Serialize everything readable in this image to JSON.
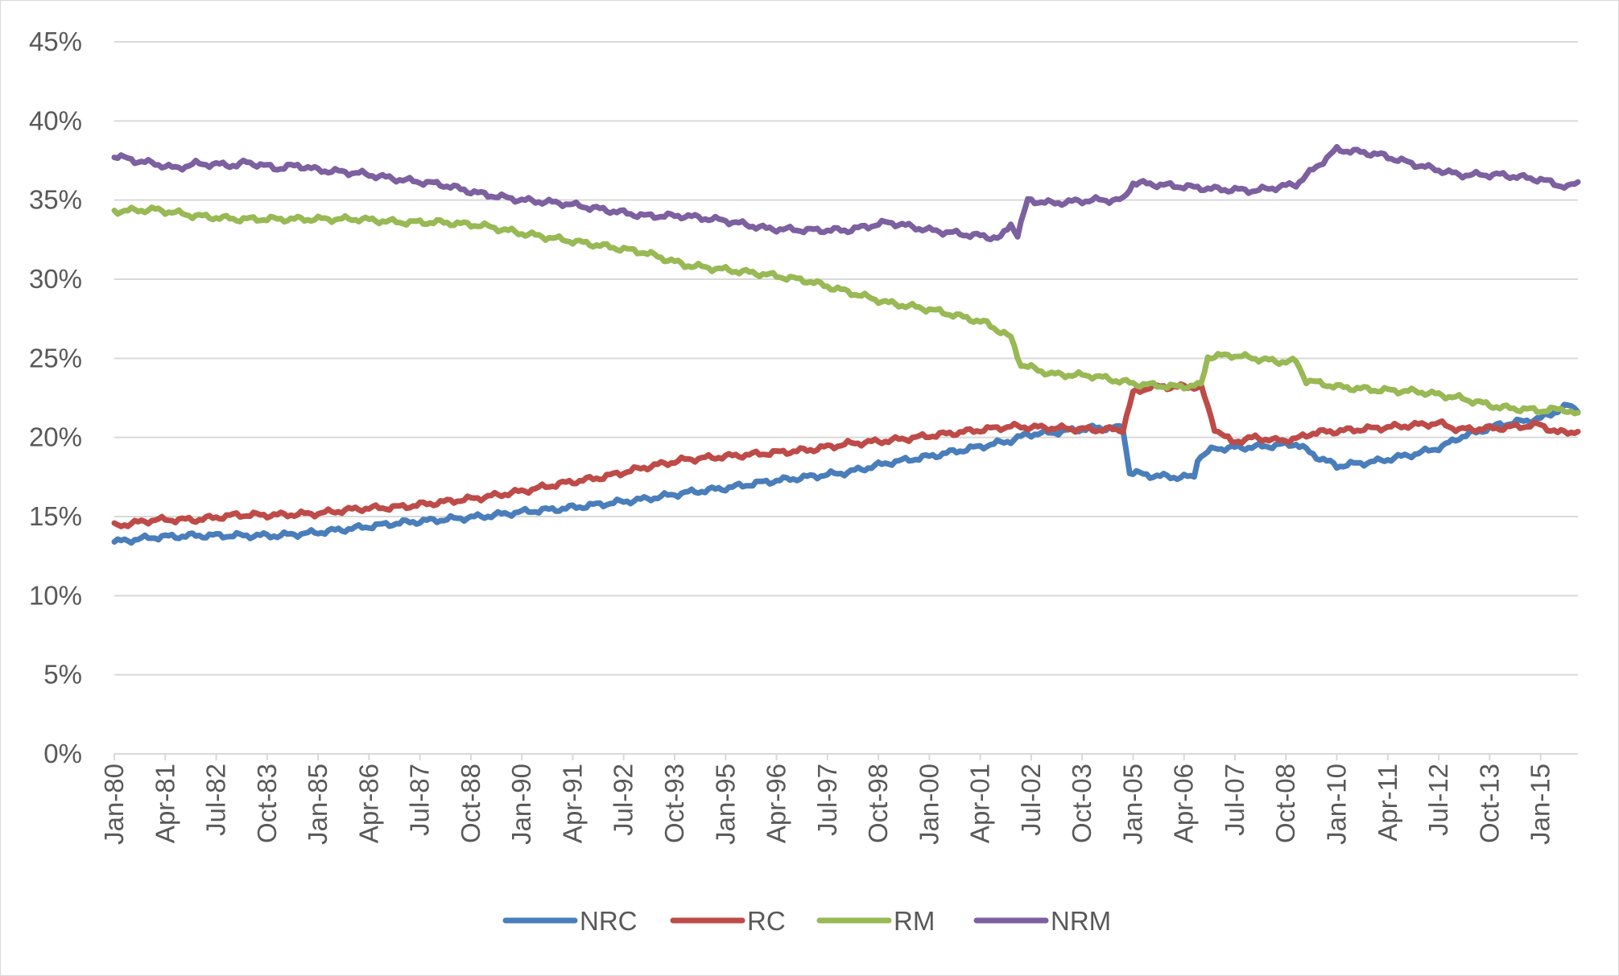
{
  "chart_data": {
    "type": "line",
    "title": "",
    "xlabel": "",
    "ylabel": "",
    "ylim": [
      0,
      45
    ],
    "y_ticks": [
      0,
      5,
      10,
      15,
      20,
      25,
      30,
      35,
      40,
      45
    ],
    "y_tick_labels": [
      "0%",
      "5%",
      "10%",
      "15%",
      "20%",
      "25%",
      "30%",
      "35%",
      "40%",
      "45%"
    ],
    "grid": "horizontal",
    "legend_position": "bottom",
    "x_range": [
      "1980-01",
      "2015-12"
    ],
    "x_tick_labels": [
      "Jan-80",
      "Apr-81",
      "Jul-82",
      "Oct-83",
      "Jan-85",
      "Apr-86",
      "Jul-87",
      "Oct-88",
      "Jan-90",
      "Apr-91",
      "Jul-92",
      "Oct-93",
      "Jan-95",
      "Apr-96",
      "Jul-97",
      "Oct-98",
      "Jan-00",
      "Apr-01",
      "Jul-02",
      "Oct-03",
      "Jan-05",
      "Apr-06",
      "Jul-07",
      "Oct-08",
      "Jan-10",
      "Apr-11",
      "Jul-12",
      "Oct-13",
      "Jan-15"
    ],
    "series": [
      {
        "name": "NRC",
        "color": "#4a7ebb",
        "points": [
          [
            "1980-01",
            13.4
          ],
          [
            "1981-01",
            13.7
          ],
          [
            "1982-01",
            13.8
          ],
          [
            "1983-01",
            13.8
          ],
          [
            "1984-01",
            13.8
          ],
          [
            "1985-01",
            14.0
          ],
          [
            "1986-01",
            14.3
          ],
          [
            "1987-01",
            14.6
          ],
          [
            "1988-01",
            14.8
          ],
          [
            "1989-01",
            15.0
          ],
          [
            "1990-01",
            15.3
          ],
          [
            "1991-01",
            15.5
          ],
          [
            "1992-01",
            15.8
          ],
          [
            "1993-01",
            16.1
          ],
          [
            "1994-01",
            16.5
          ],
          [
            "1995-01",
            16.8
          ],
          [
            "1996-01",
            17.2
          ],
          [
            "1997-01",
            17.5
          ],
          [
            "1998-01",
            17.8
          ],
          [
            "1999-01",
            18.4
          ],
          [
            "2000-01",
            18.8
          ],
          [
            "2001-01",
            19.3
          ],
          [
            "2002-01",
            19.8
          ],
          [
            "2002-06",
            20.2
          ],
          [
            "2003-01",
            20.3
          ],
          [
            "2004-01",
            20.6
          ],
          [
            "2004-10",
            20.6
          ],
          [
            "2004-12",
            17.8
          ],
          [
            "2005-06",
            17.6
          ],
          [
            "2006-01",
            17.5
          ],
          [
            "2006-07",
            17.5
          ],
          [
            "2006-08",
            18.7
          ],
          [
            "2007-01",
            19.3
          ],
          [
            "2008-01",
            19.4
          ],
          [
            "2009-01",
            19.6
          ],
          [
            "2009-07",
            18.8
          ],
          [
            "2010-01",
            18.2
          ],
          [
            "2011-01",
            18.5
          ],
          [
            "2012-01",
            19.0
          ],
          [
            "2012-06",
            19.3
          ],
          [
            "2012-08",
            19.4
          ],
          [
            "2013-01",
            20.0
          ],
          [
            "2014-01",
            20.8
          ],
          [
            "2015-01",
            21.2
          ],
          [
            "2015-09",
            22.0
          ],
          [
            "2015-12",
            21.8
          ]
        ]
      },
      {
        "name": "RC",
        "color": "#be4b48",
        "points": [
          [
            "1980-01",
            14.4
          ],
          [
            "1981-01",
            14.8
          ],
          [
            "1982-01",
            14.8
          ],
          [
            "1983-01",
            15.1
          ],
          [
            "1984-01",
            15.1
          ],
          [
            "1985-01",
            15.2
          ],
          [
            "1986-01",
            15.5
          ],
          [
            "1987-01",
            15.6
          ],
          [
            "1988-01",
            15.9
          ],
          [
            "1989-01",
            16.2
          ],
          [
            "1990-01",
            16.6
          ],
          [
            "1991-01",
            17.1
          ],
          [
            "1992-01",
            17.5
          ],
          [
            "1993-01",
            18.1
          ],
          [
            "1994-01",
            18.6
          ],
          [
            "1995-01",
            18.8
          ],
          [
            "1996-01",
            19.0
          ],
          [
            "1997-01",
            19.2
          ],
          [
            "1998-01",
            19.6
          ],
          [
            "1999-01",
            19.8
          ],
          [
            "2000-01",
            20.1
          ],
          [
            "2001-01",
            20.4
          ],
          [
            "2002-01",
            20.7
          ],
          [
            "2003-01",
            20.6
          ],
          [
            "2004-01",
            20.5
          ],
          [
            "2004-10",
            20.5
          ],
          [
            "2005-01",
            22.8
          ],
          [
            "2005-06",
            23.2
          ],
          [
            "2006-01",
            23.2
          ],
          [
            "2006-09",
            23.2
          ],
          [
            "2007-01",
            20.6
          ],
          [
            "2007-06",
            19.7
          ],
          [
            "2008-01",
            20.0
          ],
          [
            "2008-07",
            19.8
          ],
          [
            "2009-01",
            19.9
          ],
          [
            "2009-06",
            20.3
          ],
          [
            "2010-01",
            20.4
          ],
          [
            "2011-01",
            20.6
          ],
          [
            "2012-01",
            20.8
          ],
          [
            "2012-07",
            20.9
          ],
          [
            "2013-01",
            20.5
          ],
          [
            "2014-01",
            20.6
          ],
          [
            "2015-01",
            20.8
          ],
          [
            "2015-06",
            20.3
          ],
          [
            "2015-12",
            20.4
          ]
        ]
      },
      {
        "name": "RM",
        "color": "#98b954",
        "points": [
          [
            "1980-01",
            34.3
          ],
          [
            "1981-01",
            34.4
          ],
          [
            "1982-01",
            34.0
          ],
          [
            "1983-01",
            33.8
          ],
          [
            "1984-01",
            33.8
          ],
          [
            "1985-01",
            33.8
          ],
          [
            "1986-01",
            33.8
          ],
          [
            "1987-01",
            33.6
          ],
          [
            "1988-01",
            33.6
          ],
          [
            "1989-01",
            33.4
          ],
          [
            "1989-06",
            33.2
          ],
          [
            "1990-01",
            32.9
          ],
          [
            "1991-01",
            32.5
          ],
          [
            "1992-01",
            32.1
          ],
          [
            "1993-01",
            31.7
          ],
          [
            "1994-01",
            30.9
          ],
          [
            "1995-01",
            30.6
          ],
          [
            "1996-01",
            30.3
          ],
          [
            "1997-01",
            29.9
          ],
          [
            "1998-01",
            29.2
          ],
          [
            "1999-01",
            28.5
          ],
          [
            "2000-01",
            28.1
          ],
          [
            "2001-01",
            27.5
          ],
          [
            "2001-06",
            27.2
          ],
          [
            "2002-01",
            26.3
          ],
          [
            "2002-04",
            24.6
          ],
          [
            "2003-01",
            24.0
          ],
          [
            "2004-01",
            23.9
          ],
          [
            "2005-01",
            23.4
          ],
          [
            "2006-01",
            23.2
          ],
          [
            "2006-09",
            23.3
          ],
          [
            "2006-11",
            25.1
          ],
          [
            "2007-06",
            25.2
          ],
          [
            "2008-01",
            25.0
          ],
          [
            "2008-07",
            24.8
          ],
          [
            "2009-01",
            24.8
          ],
          [
            "2009-04",
            23.6
          ],
          [
            "2010-01",
            23.2
          ],
          [
            "2011-01",
            23.0
          ],
          [
            "2012-01",
            22.9
          ],
          [
            "2013-01",
            22.5
          ],
          [
            "2014-01",
            21.9
          ],
          [
            "2015-01",
            21.7
          ],
          [
            "2015-08",
            21.8
          ],
          [
            "2015-12",
            21.4
          ]
        ]
      },
      {
        "name": "NRM",
        "color": "#7d60a0",
        "points": [
          [
            "1980-01",
            37.8
          ],
          [
            "1980-07",
            37.5
          ],
          [
            "1981-01",
            37.3
          ],
          [
            "1981-07",
            37.0
          ],
          [
            "1982-01",
            37.3
          ],
          [
            "1983-01",
            37.2
          ],
          [
            "1983-04",
            37.4
          ],
          [
            "1984-01",
            37.0
          ],
          [
            "1984-07",
            37.2
          ],
          [
            "1985-01",
            36.9
          ],
          [
            "1986-01",
            36.7
          ],
          [
            "1987-01",
            36.3
          ],
          [
            "1988-01",
            36.0
          ],
          [
            "1989-01",
            35.4
          ],
          [
            "1990-01",
            35.0
          ],
          [
            "1991-01",
            34.8
          ],
          [
            "1992-01",
            34.4
          ],
          [
            "1993-01",
            34.0
          ],
          [
            "1994-01",
            34.0
          ],
          [
            "1995-01",
            33.7
          ],
          [
            "1996-01",
            33.2
          ],
          [
            "1997-01",
            33.1
          ],
          [
            "1998-01",
            33.1
          ],
          [
            "1999-01",
            33.6
          ],
          [
            "2000-01",
            33.1
          ],
          [
            "2001-01",
            32.8
          ],
          [
            "2001-10",
            32.6
          ],
          [
            "2002-01",
            33.5
          ],
          [
            "2002-03",
            32.8
          ],
          [
            "2002-06",
            35.0
          ],
          [
            "2003-01",
            34.8
          ],
          [
            "2004-01",
            35.0
          ],
          [
            "2004-10",
            35.0
          ],
          [
            "2005-01",
            36.1
          ],
          [
            "2006-01",
            35.9
          ],
          [
            "2007-01",
            35.7
          ],
          [
            "2008-01",
            35.6
          ],
          [
            "2009-01",
            36.0
          ],
          [
            "2010-01",
            38.2
          ],
          [
            "2011-01",
            37.9
          ],
          [
            "2012-01",
            37.2
          ],
          [
            "2013-01",
            36.6
          ],
          [
            "2014-01",
            36.6
          ],
          [
            "2015-01",
            36.3
          ],
          [
            "2015-09",
            35.8
          ],
          [
            "2015-12",
            36.1
          ]
        ]
      }
    ]
  }
}
